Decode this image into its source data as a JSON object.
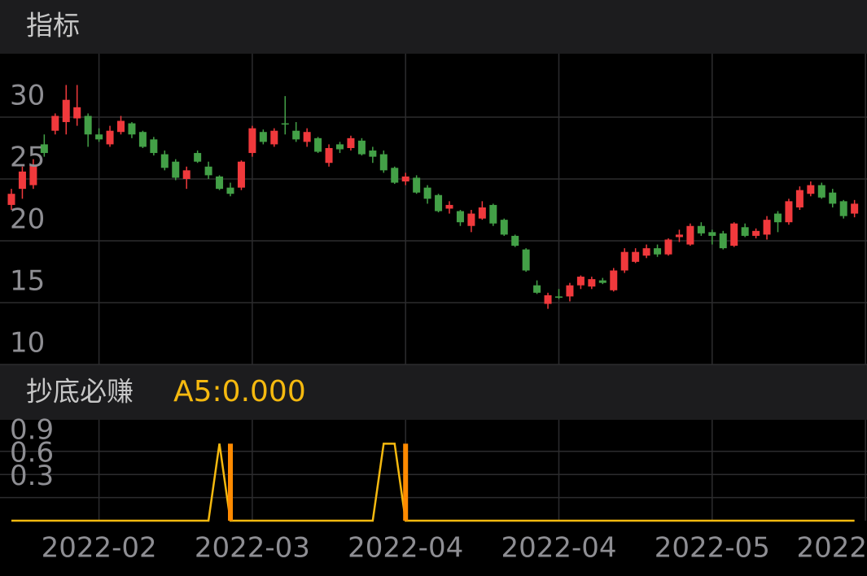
{
  "chart_data": [
    {
      "type": "candlestick",
      "title": "指标",
      "open": [
        22.9,
        24.2,
        24.5,
        27.8,
        28.9,
        29.6,
        29.9,
        30.1,
        28.6,
        27.8,
        28.8,
        29.5,
        28.8,
        28.2,
        27.0,
        26.4,
        25.0,
        27.1,
        26.0,
        25.2,
        24.3,
        24.3,
        27.1,
        28.8,
        27.8,
        29.5,
        28.9,
        28.0,
        28.3,
        26.3,
        27.8,
        27.5,
        28.1,
        27.3,
        27.0,
        25.9,
        24.8,
        25.1,
        24.3,
        23.7,
        22.6,
        22.4,
        21.2,
        21.8,
        22.9,
        21.7,
        20.4,
        19.3,
        16.4,
        14.9,
        15.5,
        15.5,
        16.4,
        16.3,
        16.8,
        16.0,
        17.6,
        18.3,
        18.8,
        19.4,
        18.9,
        20.3,
        19.7,
        21.2,
        20.7,
        20.6,
        19.6,
        21.1,
        20.4,
        20.5,
        22.2,
        21.5,
        22.7,
        23.8,
        24.5,
        23.9,
        23.2,
        22.2
      ],
      "high": [
        24.2,
        26.0,
        26.6,
        28.6,
        30.3,
        32.6,
        32.6,
        30.3,
        29.1,
        29.3,
        30.1,
        29.6,
        28.9,
        28.4,
        27.3,
        26.6,
        26.0,
        27.3,
        26.4,
        25.3,
        24.7,
        26.5,
        29.3,
        29.0,
        29.1,
        31.7,
        29.6,
        29.1,
        28.4,
        27.8,
        28.0,
        28.5,
        28.3,
        27.6,
        27.3,
        26.0,
        25.5,
        25.3,
        24.5,
        23.8,
        23.2,
        22.5,
        22.5,
        23.2,
        23.0,
        21.8,
        20.5,
        19.4,
        16.8,
        15.8,
        16.1,
        16.6,
        17.2,
        17.1,
        17.0,
        17.8,
        19.4,
        19.4,
        19.7,
        19.7,
        20.2,
        20.9,
        21.4,
        21.5,
        20.9,
        20.8,
        21.5,
        21.4,
        21.0,
        22.0,
        22.4,
        23.4,
        24.4,
        24.8,
        24.7,
        24.2,
        23.3,
        23.3
      ],
      "low": [
        22.5,
        23.4,
        24.2,
        26.8,
        28.6,
        28.6,
        29.3,
        27.6,
        28.0,
        27.6,
        28.6,
        28.3,
        27.5,
        26.9,
        25.7,
        24.9,
        24.2,
        26.3,
        25.0,
        24.1,
        23.6,
        24.1,
        26.8,
        27.8,
        27.6,
        28.6,
        28.0,
        27.6,
        27.1,
        26.0,
        27.1,
        27.3,
        26.9,
        26.3,
        25.5,
        24.6,
        24.5,
        23.8,
        23.0,
        22.3,
        22.2,
        21.2,
        20.7,
        21.7,
        21.2,
        20.4,
        19.5,
        17.5,
        15.7,
        14.5,
        15.3,
        15.1,
        16.1,
        16.1,
        16.5,
        15.9,
        17.4,
        18.2,
        18.6,
        18.7,
        18.8,
        19.9,
        19.6,
        20.4,
        19.7,
        19.3,
        19.5,
        20.3,
        20.2,
        20.1,
        20.7,
        21.3,
        22.5,
        23.6,
        23.4,
        22.7,
        21.8,
        21.9
      ],
      "close": [
        23.8,
        25.6,
        26.1,
        27.1,
        30.1,
        31.4,
        30.8,
        28.6,
        28.2,
        28.9,
        29.7,
        28.6,
        27.6,
        27.1,
        25.9,
        25.1,
        25.7,
        26.4,
        25.3,
        24.2,
        23.8,
        26.4,
        29.1,
        28.0,
        28.9,
        29.4,
        28.2,
        28.8,
        27.2,
        27.5,
        27.4,
        28.3,
        27.0,
        26.8,
        25.7,
        24.7,
        25.2,
        23.9,
        23.4,
        22.4,
        22.9,
        21.5,
        22.2,
        22.7,
        21.4,
        20.5,
        19.6,
        17.6,
        15.8,
        15.6,
        15.4,
        16.4,
        17.1,
        16.9,
        16.6,
        17.6,
        19.1,
        19.1,
        19.4,
        18.9,
        20.1,
        20.5,
        21.2,
        20.6,
        20.4,
        19.4,
        21.4,
        20.4,
        20.8,
        21.7,
        21.5,
        23.2,
        24.1,
        24.5,
        23.5,
        23.0,
        22.0,
        23.0
      ],
      "up_color": "#f0393c",
      "down_color": "#43a047",
      "ylim": [
        10,
        35.13
      ],
      "yticks": [
        10,
        15,
        20,
        25,
        30
      ],
      "grid": true
    },
    {
      "type": "line",
      "title": "抄底必赚",
      "label": "A5:0.000",
      "series": [
        {
          "color": "#f5b90f",
          "values": [
            0,
            0,
            0,
            0,
            0,
            0,
            0,
            0,
            0,
            0,
            0,
            0,
            0,
            0,
            0,
            0,
            0,
            0,
            0,
            1,
            0,
            0,
            0,
            0,
            0,
            0,
            0,
            0,
            0,
            0,
            0,
            0,
            0,
            0,
            1,
            1,
            0,
            0,
            0,
            0,
            0,
            0,
            0,
            0,
            0,
            0,
            0,
            0,
            0,
            0,
            0,
            0,
            0,
            0,
            0,
            0,
            0,
            0,
            0,
            0,
            0,
            0,
            0,
            0,
            0,
            0,
            0,
            0,
            0,
            0,
            0,
            0,
            0,
            0,
            0,
            0,
            0,
            0
          ]
        },
        {
          "type": "bar",
          "color": "#ff8a00",
          "values": [
            0,
            0,
            0,
            0,
            0,
            0,
            0,
            0,
            0,
            0,
            0,
            0,
            0,
            0,
            0,
            0,
            0,
            0,
            0,
            0,
            1,
            0,
            0,
            0,
            0,
            0,
            0,
            0,
            0,
            0,
            0,
            0,
            0,
            0,
            0,
            0,
            1,
            0,
            0,
            0,
            0,
            0,
            0,
            0,
            0,
            0,
            0,
            0,
            0,
            0,
            0,
            0,
            0,
            0,
            0,
            0,
            0,
            0,
            0,
            0,
            0,
            0,
            0,
            0,
            0,
            0,
            0,
            0,
            0,
            0,
            0,
            0,
            0,
            0,
            0,
            0,
            0,
            0
          ]
        }
      ],
      "ylim": [
        0,
        1.31
      ],
      "yticks": [
        0.3,
        0.6,
        0.9
      ],
      "grid": true,
      "xticks": [
        {
          "value": 8,
          "label": "2022-02"
        },
        {
          "value": 22,
          "label": "2022-03"
        },
        {
          "value": 36,
          "label": "2022-04"
        },
        {
          "value": 50,
          "label": "2022-04"
        },
        {
          "value": 64,
          "label": "2022-05"
        },
        {
          "value": 78,
          "label": "2022"
        }
      ]
    }
  ]
}
